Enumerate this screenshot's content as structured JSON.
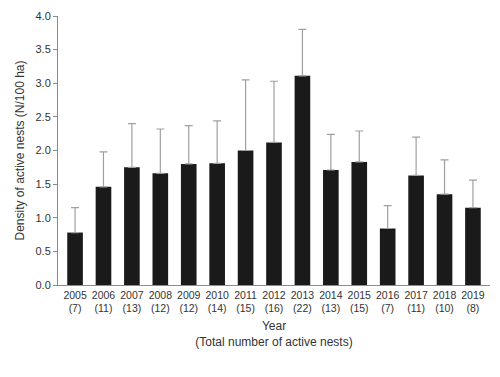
{
  "chart_data": {
    "type": "bar",
    "ylabel": "Density of active nests (N/100 ha)",
    "xlabel_lines": [
      "Year",
      "(Total number of active nests)"
    ],
    "categories": [
      "2005",
      "2006",
      "2007",
      "2008",
      "2009",
      "2010",
      "2011",
      "2012",
      "2013",
      "2014",
      "2015",
      "2016",
      "2017",
      "2018",
      "2019"
    ],
    "count_labels": [
      "(7)",
      "(11)",
      "(13)",
      "(12)",
      "(12)",
      "(14)",
      "(15)",
      "(16)",
      "(22)",
      "(13)",
      "(15)",
      "(7)",
      "(11)",
      "(10)",
      "(8)"
    ],
    "values": [
      0.78,
      1.46,
      1.75,
      1.66,
      1.8,
      1.81,
      2.0,
      2.12,
      3.11,
      1.71,
      1.83,
      0.84,
      1.63,
      1.35,
      1.15
    ],
    "errors": [
      0.37,
      0.52,
      0.65,
      0.66,
      0.57,
      0.63,
      1.05,
      0.91,
      0.69,
      0.53,
      0.46,
      0.34,
      0.57,
      0.51,
      0.41
    ],
    "color": "#1a1a1a",
    "ylim": [
      0,
      4
    ],
    "yticks": [
      {
        "value": 0,
        "label": "0.0"
      },
      {
        "value": 0.5,
        "label": "0.5"
      },
      {
        "value": 1,
        "label": "1.0"
      },
      {
        "value": 1.5,
        "label": "1.5"
      },
      {
        "value": 2,
        "label": "2.0"
      },
      {
        "value": 2.5,
        "label": "2.5"
      },
      {
        "value": 3,
        "label": "3.0"
      },
      {
        "value": 3.5,
        "label": "3.5"
      },
      {
        "value": 4,
        "label": "4.0"
      }
    ],
    "grid": false
  }
}
